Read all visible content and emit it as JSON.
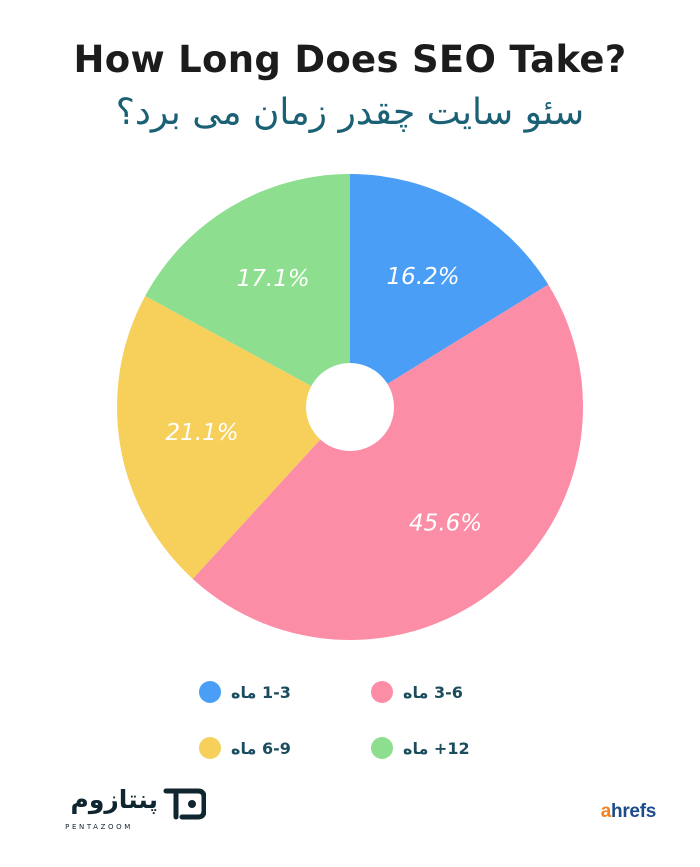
{
  "header": {
    "title": "How Long Does SEO Take?",
    "subtitle": "سئو سایت چقدر زمان می برد؟"
  },
  "chart_data": {
    "type": "pie",
    "donut_hole": true,
    "title": "How Long Does SEO Take?",
    "subtitle": "سئو سایت چقدر زمان می برد؟",
    "slices": [
      {
        "label": "1-3 ماه",
        "value": 16.2,
        "display": "16.2%",
        "color": "#4a9ef5"
      },
      {
        "label": "3-6 ماه",
        "value": 45.6,
        "display": "45.6%",
        "color": "#fb8da6"
      },
      {
        "label": "6-9 ماه",
        "value": 21.1,
        "display": "21.1%",
        "color": "#f6d05a"
      },
      {
        "label": "12+ ماه",
        "value": 17.1,
        "display": "17.1%",
        "color": "#8ede90"
      }
    ],
    "start_angle": "top",
    "direction": "clockwise",
    "legend_position": "bottom"
  },
  "legend": {
    "items": [
      {
        "label": "1-3 ماه",
        "color": "#4a9ef5"
      },
      {
        "label": "3-6 ماه",
        "color": "#fb8da6"
      },
      {
        "label": "6-9 ماه",
        "color": "#f6d05a"
      },
      {
        "label": "12+ ماه",
        "color": "#8ede90"
      }
    ]
  },
  "footer": {
    "brand_name": "پنتازوم",
    "brand_tagline": "PENTAZOOM",
    "source_first_letter": "a",
    "source_rest": "hrefs"
  }
}
